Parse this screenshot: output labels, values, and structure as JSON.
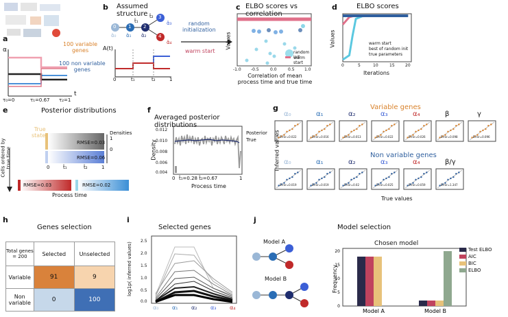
{
  "panels": {
    "a": {
      "label": "a",
      "variable": "100 variable\ngenes",
      "nonvariable": "100 non variable\ngenes",
      "alpha_axis": "α",
      "t_axis": "t",
      "ticks": [
        "τ₀=0",
        "τ₁=0.67",
        "τ₂=1"
      ]
    },
    "b": {
      "label": "b",
      "title": "Assumed structure",
      "nodes": [
        "0",
        "1",
        "2",
        "3",
        "4"
      ],
      "edges": [
        "t̂₁",
        "t̂₂",
        "t̂₃",
        "t̂₄"
      ],
      "alphas": [
        "α̂₀",
        "α̂₁",
        "α̂₂",
        "α̂₃",
        "α̂₄"
      ],
      "A_axis": "A(t)",
      "ticks": [
        "0",
        "t̂₁",
        "t̂₂",
        "1"
      ]
    },
    "arrow": {
      "top": "random\ninitialization",
      "bottom": "warm start"
    },
    "c": {
      "label": "c",
      "title": "ELBO scores vs correlation",
      "xlabel": "Correlation of mean\nprocess time and true time",
      "ylabel": "Values",
      "xticks": [
        "-1.0",
        "-0.5",
        "0.0",
        "0.5",
        "1.0"
      ],
      "legend": [
        "random init",
        "warm start"
      ]
    },
    "d": {
      "label": "d",
      "title": "ELBO scores",
      "xlabel": "Iterations",
      "ylabel": "Values",
      "xticks": [
        "0",
        "5",
        "10",
        "15",
        "20"
      ],
      "legend": [
        "warm start",
        "best of random init",
        "true parameters"
      ]
    },
    "e": {
      "label": "e",
      "title": "Posterior distributions",
      "true_states": "True\nstates",
      "densities": "Densities",
      "ylabel": "Cells ordered by\ntrue time",
      "xlabel": "Process time",
      "rmse": [
        "RMSE=0.03",
        "RMSE=0.06",
        "RMSE=0.03",
        "RMSE=0.02"
      ],
      "ticks": [
        "0",
        "t̂₁",
        "t̂₂",
        "1"
      ],
      "dens_ticks": [
        "1",
        "0"
      ]
    },
    "f": {
      "label": "f",
      "title": "Averaged posterior distributions",
      "xlabel": "Process time",
      "ylabel": "Density",
      "yticks": [
        "0.012",
        "0.010",
        "0.008",
        "0.006",
        "0.004"
      ],
      "xticks": [
        "0",
        "1"
      ],
      "annot": "t̂₁=0.28  t̂₂=0.67",
      "legend": [
        "Posterior",
        "True"
      ]
    },
    "g": {
      "label": "g",
      "variable_title": "Variable genes",
      "nonvariable_title": "Non variable genes",
      "ylabel": "Inferred values",
      "xlabel": "True values",
      "params": [
        "α₀",
        "α₁",
        "α₂",
        "α₃",
        "α₄",
        "β",
        "γ"
      ],
      "params2": [
        "α₀",
        "α₁",
        "α₂",
        "α₃",
        "α₄",
        "β/γ"
      ],
      "errors": [
        "Error=0.022",
        "Error=0.016",
        "Error=0.013",
        "Error=0.022",
        "Error=0.026",
        "Error=0.098",
        "Error=0.096"
      ],
      "errors2": [
        "Error=0.019",
        "Error=0.019",
        "Error=0.02",
        "Error=0.025",
        "Error=0.059",
        "Error=1.347"
      ]
    },
    "h": {
      "label": "h",
      "title": "Genes selection",
      "corner": "Total genes\n= 200",
      "cols": [
        "Selected",
        "Unselected"
      ],
      "rows": [
        "Variable",
        "Non\nvariable"
      ],
      "cells": [
        [
          "91",
          "9"
        ],
        [
          "0",
          "100"
        ]
      ]
    },
    "i": {
      "label": "i",
      "title": "Selected genes",
      "ylabel": "log1p( inferred values)",
      "yticks": [
        "2.5",
        "2.0",
        "1.5",
        "1.0",
        "0.5",
        "0.0"
      ],
      "xticks": [
        "α₀",
        "α₁",
        "α₂",
        "α₃",
        "α₄"
      ]
    },
    "j": {
      "label": "j",
      "title": "Model selection",
      "modelA": "Model A",
      "modelB": "Model B",
      "chart_title": "Chosen model",
      "ylabel": "Frequency",
      "yticks": [
        "20",
        "15",
        "10",
        "5",
        "0"
      ]
    }
  },
  "chart_data": [
    {
      "type": "bar",
      "title": "Chosen model",
      "categories": [
        "Model A",
        "Model B"
      ],
      "series": [
        {
          "name": "Test ELBO",
          "values": [
            18,
            2
          ]
        },
        {
          "name": "AIC",
          "values": [
            18,
            2
          ]
        },
        {
          "name": "BIC",
          "values": [
            18,
            2
          ]
        },
        {
          "name": "ELBO",
          "values": [
            0,
            20
          ]
        }
      ],
      "ylabel": "Frequency",
      "ylim": [
        0,
        21
      ],
      "colors": [
        "#2a2a4a",
        "#c0435e",
        "#e8c27a",
        "#8fa88f"
      ]
    },
    {
      "type": "line",
      "title": "ELBO scores",
      "xlabel": "Iterations",
      "ylabel": "Values",
      "x": [
        0,
        2,
        3,
        4,
        6,
        10,
        20
      ],
      "series": [
        {
          "name": "warm start",
          "values": [
            0.8,
            0.97,
            0.99,
            1.0,
            1.0,
            1.0,
            1.0
          ]
        },
        {
          "name": "best of random init",
          "values": [
            0.0,
            0.1,
            0.55,
            0.93,
            0.99,
            1.0,
            1.0
          ]
        },
        {
          "name": "true parameters",
          "values": [
            1.0,
            1.0,
            1.0,
            1.0,
            1.0,
            1.0,
            1.0
          ]
        }
      ],
      "xlim": [
        0,
        21
      ],
      "colors": [
        "#e0708a",
        "#5bc8e0",
        "#2f5f9e"
      ]
    }
  ],
  "colors": {
    "variable": "#d9822b",
    "nonvariable": "#2f5f9e",
    "alpha1": "#2a6db5",
    "alpha2": "#1f2d6e",
    "alpha3": "#3b5fd6",
    "alpha4": "#c02a2a",
    "alpha0": "#9ab7d6"
  }
}
